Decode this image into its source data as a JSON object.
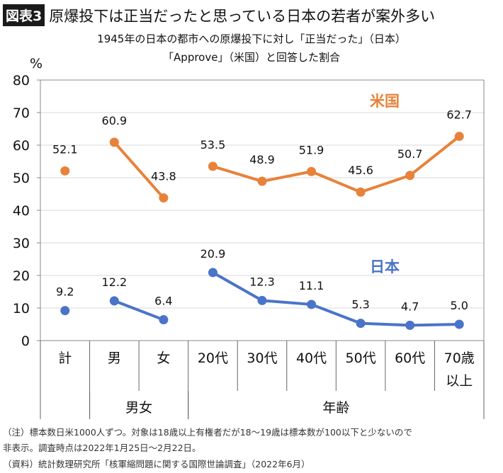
{
  "header": {
    "badge": "図表3",
    "title": "原爆投下は正当だったと思っている日本の若者が案外多い"
  },
  "chart_data": {
    "type": "line",
    "title_lines": [
      "1945年の日本の都市への原爆投下に対し「正当だった」（日本）",
      "「Approve」（米国）と回答した割合"
    ],
    "ylabel": "%",
    "ylim": [
      0,
      80
    ],
    "yticks": [
      0,
      10,
      20,
      30,
      40,
      50,
      60,
      70,
      80
    ],
    "grid": true,
    "categories": [
      "計",
      "男",
      "女",
      "20代",
      "30代",
      "40代",
      "50代",
      "60代",
      "70歳\n以上"
    ],
    "category_lines": [
      [
        "計"
      ],
      [
        "男"
      ],
      [
        "女"
      ],
      [
        "20代"
      ],
      [
        "30代"
      ],
      [
        "40代"
      ],
      [
        "50代"
      ],
      [
        "60代"
      ],
      [
        "70歳",
        "以上"
      ]
    ],
    "groups": [
      {
        "label": "",
        "span": [
          0,
          0
        ]
      },
      {
        "label": "男女",
        "span": [
          1,
          2
        ]
      },
      {
        "label": "年齢",
        "span": [
          3,
          8
        ]
      }
    ],
    "series": [
      {
        "name": "米国",
        "color": "#E8823A",
        "values": [
          52.1,
          60.9,
          43.8,
          53.5,
          48.9,
          51.9,
          45.6,
          50.7,
          62.7
        ],
        "labels": [
          "52.1",
          "60.9",
          "43.8",
          "53.5",
          "48.9",
          "51.9",
          "45.6",
          "50.7",
          "62.7"
        ]
      },
      {
        "name": "日本",
        "color": "#4A74C9",
        "values": [
          9.2,
          12.2,
          6.4,
          20.9,
          12.3,
          11.1,
          5.3,
          4.7,
          5.0
        ],
        "labels": [
          "9.2",
          "12.2",
          "6.4",
          "20.9",
          "12.3",
          "11.1",
          "5.3",
          "4.7",
          "5.0"
        ]
      }
    ]
  },
  "notes": [
    "（注）標本数日米1000人ずつ。対象は18歳以上有権者だが18～19歳は標本数が100以下と少ないので",
    "非表示。調査時点は2022年1月25日～2月22日。",
    "（資料）統計数理研究所「核軍縮問題に関する国際世論調査」（2022年6月）"
  ]
}
